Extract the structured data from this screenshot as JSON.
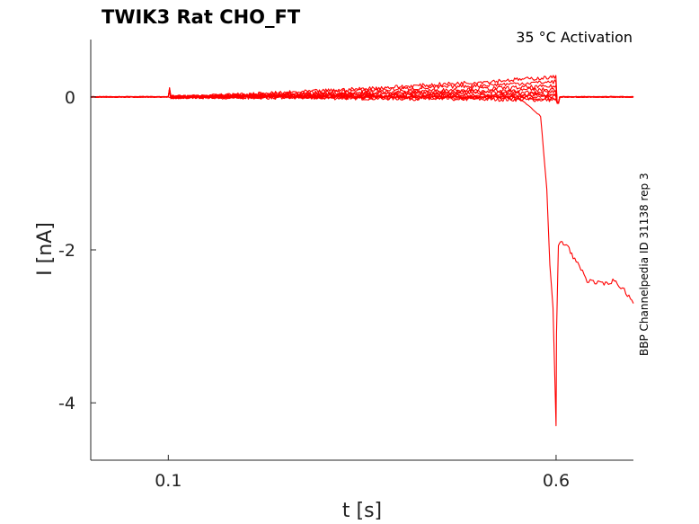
{
  "chart_data": {
    "type": "line",
    "title": "TWIK3  Rat  CHO_FT",
    "annotation": "35 °C  Activation",
    "side_label": "BBP Channelpedia ID 31138 rep 3",
    "xlabel": "t [s]",
    "ylabel": "I [nA]",
    "xlim": [
      0.0,
      0.6997
    ],
    "ylim": [
      -4.75,
      0.75
    ],
    "x_ticks": [
      0.1,
      0.6
    ],
    "x_tick_labels": [
      "0.1",
      "0.6"
    ],
    "y_ticks": [
      0,
      -2,
      -4
    ],
    "y_tick_labels": [
      "0",
      "-2",
      "-4"
    ],
    "grid": false,
    "legend": "none",
    "line_color": "#ff0000",
    "step": {
      "onset": 0.1,
      "offset": 0.6
    },
    "series": [
      {
        "plateau": -0.04
      },
      {
        "plateau": -0.02
      },
      {
        "plateau": 0.0
      },
      {
        "plateau": 0.02
      },
      {
        "plateau": 0.04
      },
      {
        "plateau": 0.07
      },
      {
        "plateau": 0.1
      },
      {
        "plateau": 0.14
      },
      {
        "plateau": 0.2
      },
      {
        "plateau": 0.26
      }
    ],
    "breakdown_trace": {
      "x": [
        0.1,
        0.55,
        0.58,
        0.588,
        0.592,
        0.596,
        0.6,
        0.6005,
        0.603,
        0.606,
        0.615,
        0.622,
        0.63,
        0.64,
        0.66,
        0.675,
        0.69,
        0.6997
      ],
      "y": [
        0.0,
        0.0,
        -0.25,
        -1.2,
        -2.2,
        -2.75,
        -4.3,
        -3.1,
        -1.95,
        -1.9,
        -1.95,
        -2.1,
        -2.2,
        -2.4,
        -2.45,
        -2.4,
        -2.55,
        -2.7
      ]
    }
  }
}
